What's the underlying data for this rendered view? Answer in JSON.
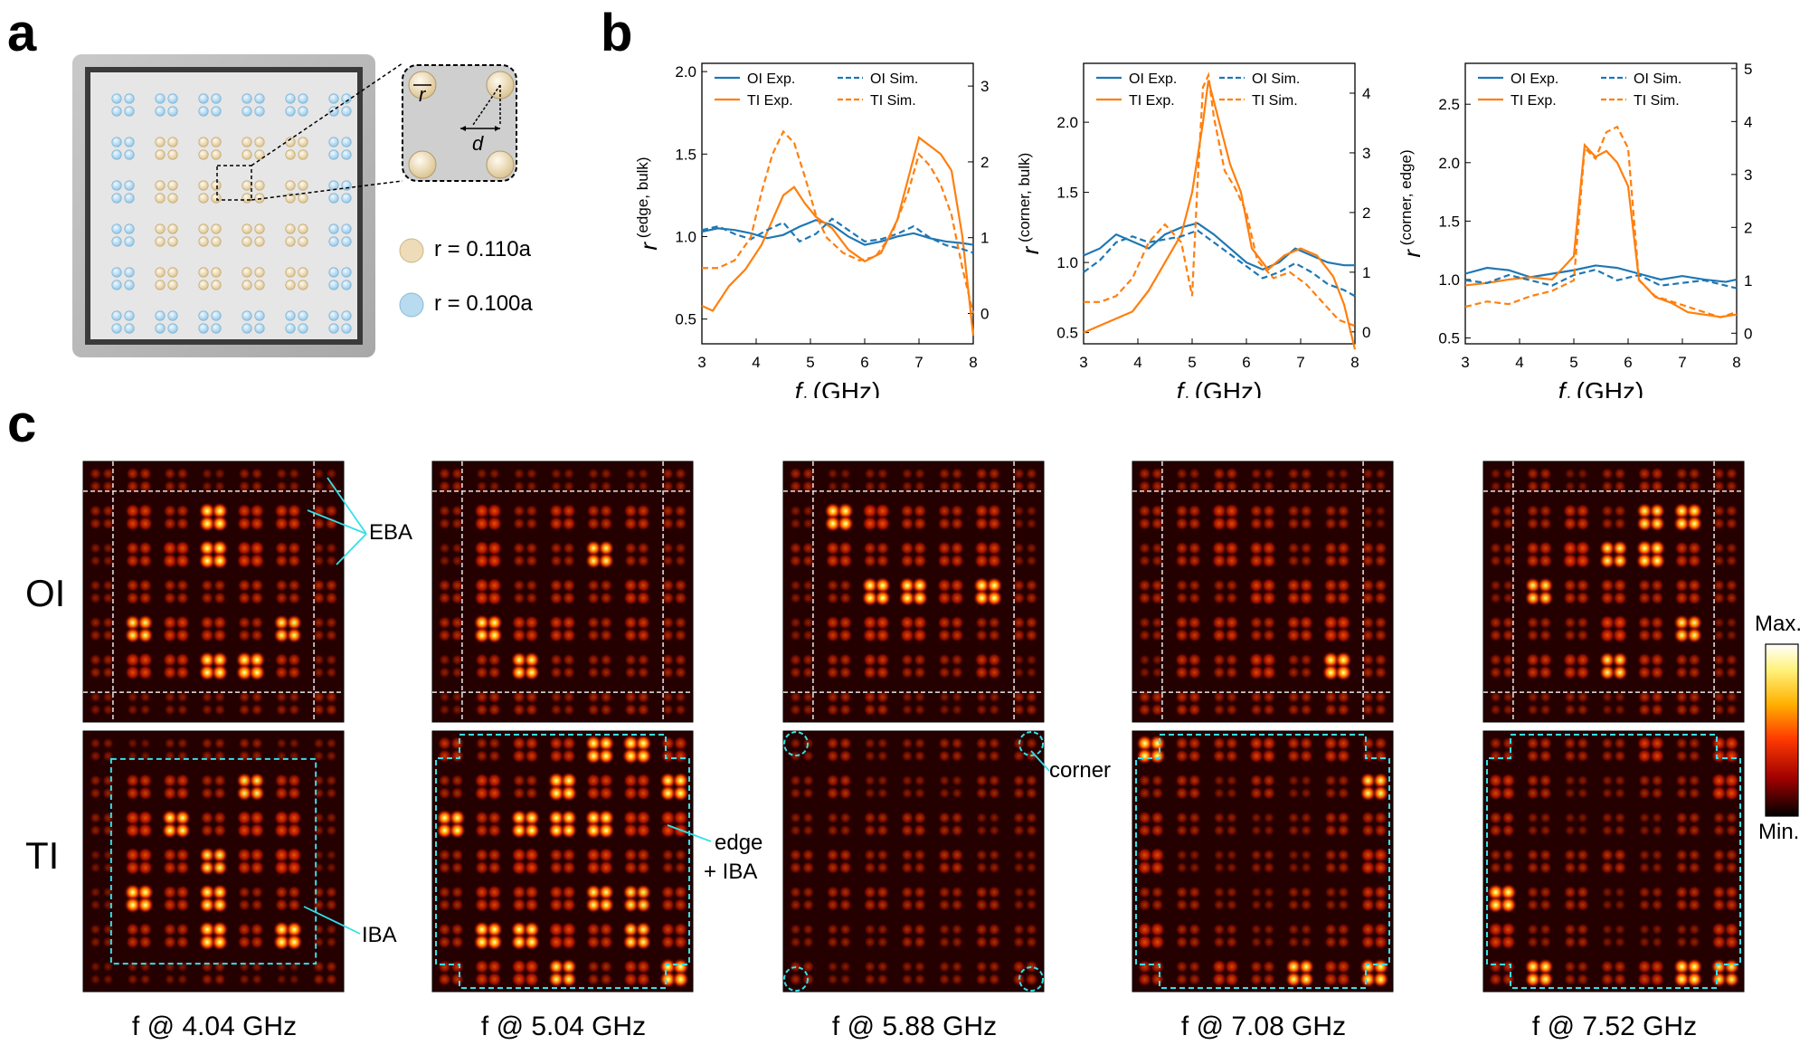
{
  "figure": {
    "panel_labels": [
      "a",
      "b",
      "c"
    ],
    "panel_a": {
      "legend": [
        {
          "label": "r = 0.110a",
          "color": "#eddcb7"
        },
        {
          "label": "r = 0.100a",
          "color": "#b8dbef"
        }
      ],
      "inset_labels": {
        "r": "r",
        "d": "d"
      }
    },
    "panel_c": {
      "row_labels": [
        "OI",
        "TI"
      ],
      "frequencies": [
        "f @ 4.04 GHz",
        "f @ 5.04 GHz",
        "f @ 5.88 GHz",
        "f @ 7.08 GHz",
        "f @ 7.52 GHz"
      ],
      "annotations": {
        "eba": "EBA",
        "iba": "IBA",
        "edge": "edge",
        "edge_iba": "+ IBA",
        "corner": "corner"
      },
      "colorbar": {
        "max": "Max.",
        "min": "Min."
      }
    }
  },
  "chart_data": [
    {
      "type": "line",
      "ylabel": "r (edge, bulk)",
      "xlabel": "fi (GHz)",
      "xlim": [
        3,
        8
      ],
      "ylim_left": [
        0.35,
        2.05
      ],
      "ylim_right": [
        -0.4,
        3.3
      ],
      "xticks": [
        3,
        4,
        5,
        6,
        7,
        8
      ],
      "yticks_left": [
        0.5,
        1.0,
        1.5,
        2.0
      ],
      "yticks_right": [
        0,
        1,
        2,
        3
      ],
      "legend": [
        "OI Exp.",
        "TI Exp.",
        "OI Sim.",
        "TI Sim."
      ],
      "series": [
        {
          "name": "OI Exp.",
          "axis": "left",
          "color": "#1f77b4",
          "dash": false,
          "x": [
            3,
            3.3,
            3.6,
            3.9,
            4.2,
            4.5,
            4.8,
            5.1,
            5.4,
            5.7,
            6,
            6.3,
            6.6,
            6.9,
            7.2,
            7.5,
            7.8,
            8
          ],
          "y": [
            1.03,
            1.05,
            1.04,
            1.02,
            0.99,
            1.01,
            1.06,
            1.1,
            1.07,
            1.0,
            0.95,
            0.97,
            1.0,
            1.02,
            0.99,
            0.97,
            0.96,
            0.95
          ]
        },
        {
          "name": "TI Exp.",
          "axis": "left",
          "color": "#ff7f0e",
          "dash": false,
          "x": [
            3,
            3.2,
            3.5,
            3.8,
            4.1,
            4.3,
            4.5,
            4.7,
            4.9,
            5.1,
            5.4,
            5.7,
            6,
            6.3,
            6.6,
            6.8,
            7,
            7.2,
            7.4,
            7.6,
            7.8,
            8
          ],
          "y": [
            0.58,
            0.55,
            0.7,
            0.8,
            0.95,
            1.1,
            1.25,
            1.3,
            1.2,
            1.12,
            1.05,
            0.92,
            0.85,
            0.9,
            1.1,
            1.35,
            1.6,
            1.55,
            1.5,
            1.4,
            1.0,
            0.4
          ]
        },
        {
          "name": "OI Sim.",
          "axis": "right",
          "color": "#1f77b4",
          "dash": true,
          "x": [
            3,
            3.3,
            3.6,
            3.9,
            4.2,
            4.5,
            4.8,
            5.1,
            5.4,
            5.7,
            6,
            6.3,
            6.6,
            6.9,
            7.2,
            7.5,
            7.8,
            8
          ],
          "y": [
            1.1,
            1.15,
            1.05,
            0.98,
            1.1,
            1.2,
            0.95,
            1.05,
            1.25,
            1.1,
            0.95,
            0.98,
            1.05,
            1.15,
            1.0,
            0.9,
            0.85,
            0.8
          ]
        },
        {
          "name": "TI Sim.",
          "axis": "right",
          "color": "#ff7f0e",
          "dash": true,
          "x": [
            3,
            3.3,
            3.6,
            3.9,
            4.1,
            4.3,
            4.5,
            4.7,
            4.9,
            5.1,
            5.3,
            5.6,
            5.9,
            6.2,
            6.5,
            6.8,
            7,
            7.2,
            7.4,
            7.6,
            7.8,
            8
          ],
          "y": [
            0.6,
            0.6,
            0.7,
            1.0,
            1.6,
            2.1,
            2.4,
            2.25,
            1.8,
            1.3,
            1.0,
            0.8,
            0.7,
            0.75,
            1.05,
            1.6,
            2.1,
            1.95,
            1.7,
            1.3,
            0.6,
            0.0
          ]
        }
      ]
    },
    {
      "type": "line",
      "ylabel": "r (corner, bulk)",
      "xlabel": "fi (GHz)",
      "xlim": [
        3,
        8
      ],
      "ylim_left": [
        0.42,
        2.42
      ],
      "ylim_right": [
        -0.2,
        4.5
      ],
      "xticks": [
        3,
        4,
        5,
        6,
        7,
        8
      ],
      "yticks_left": [
        0.5,
        1.0,
        1.5,
        2.0
      ],
      "yticks_right": [
        0,
        1,
        2,
        3,
        4
      ],
      "legend": [
        "OI Exp.",
        "TI Exp.",
        "OI Sim.",
        "TI Sim."
      ],
      "series": [
        {
          "name": "OI Exp.",
          "axis": "left",
          "color": "#1f77b4",
          "dash": false,
          "x": [
            3,
            3.3,
            3.6,
            3.9,
            4.2,
            4.5,
            4.8,
            5.1,
            5.4,
            5.7,
            6,
            6.3,
            6.6,
            6.9,
            7.2,
            7.5,
            7.8,
            8
          ],
          "y": [
            1.05,
            1.1,
            1.2,
            1.15,
            1.1,
            1.2,
            1.25,
            1.28,
            1.2,
            1.1,
            1.0,
            0.95,
            1.0,
            1.1,
            1.05,
            1.0,
            0.98,
            0.98
          ]
        },
        {
          "name": "TI Exp.",
          "axis": "left",
          "color": "#ff7f0e",
          "dash": false,
          "x": [
            3,
            3.3,
            3.6,
            3.9,
            4.2,
            4.5,
            4.8,
            5,
            5.2,
            5.3,
            5.5,
            5.7,
            5.9,
            6.1,
            6.4,
            6.7,
            7,
            7.3,
            7.6,
            7.8,
            8
          ],
          "y": [
            0.5,
            0.55,
            0.6,
            0.65,
            0.8,
            1.0,
            1.2,
            1.5,
            2.0,
            2.3,
            2.0,
            1.7,
            1.5,
            1.1,
            0.95,
            1.05,
            1.1,
            1.05,
            0.9,
            0.7,
            0.38
          ]
        },
        {
          "name": "OI Sim.",
          "axis": "right",
          "color": "#1f77b4",
          "dash": true,
          "x": [
            3,
            3.3,
            3.6,
            3.9,
            4.2,
            4.5,
            4.8,
            5.1,
            5.4,
            5.7,
            6,
            6.3,
            6.6,
            6.9,
            7.2,
            7.5,
            7.8,
            8
          ],
          "y": [
            1.0,
            1.2,
            1.5,
            1.6,
            1.5,
            1.55,
            1.6,
            1.7,
            1.5,
            1.3,
            1.1,
            0.9,
            1.0,
            1.15,
            1.0,
            0.8,
            0.7,
            0.6
          ]
        },
        {
          "name": "TI Sim.",
          "axis": "right",
          "color": "#ff7f0e",
          "dash": true,
          "x": [
            3,
            3.3,
            3.6,
            3.9,
            4.2,
            4.5,
            4.8,
            5,
            5.1,
            5.2,
            5.3,
            5.4,
            5.6,
            5.8,
            6,
            6.2,
            6.5,
            6.8,
            7.1,
            7.4,
            7.7,
            8
          ],
          "y": [
            0.5,
            0.5,
            0.6,
            0.9,
            1.5,
            1.8,
            1.5,
            0.6,
            2.5,
            4.1,
            4.3,
            3.6,
            2.7,
            2.4,
            2.0,
            1.2,
            0.9,
            1.0,
            0.8,
            0.5,
            0.2,
            0.1
          ]
        }
      ]
    },
    {
      "type": "line",
      "ylabel": "r (corner, edge)",
      "xlabel": "fi (GHz)",
      "xlim": [
        3,
        8
      ],
      "ylim_left": [
        0.45,
        2.85
      ],
      "ylim_right": [
        -0.2,
        5.1
      ],
      "xticks": [
        3,
        4,
        5,
        6,
        7,
        8
      ],
      "yticks_left": [
        0.5,
        1.0,
        1.5,
        2.0,
        2.5
      ],
      "yticks_right": [
        0,
        1,
        2,
        3,
        4,
        5
      ],
      "legend": [
        "OI Exp.",
        "TI Exp.",
        "OI Sim.",
        "TI Sim."
      ],
      "series": [
        {
          "name": "OI Exp.",
          "axis": "left",
          "color": "#1f77b4",
          "dash": false,
          "x": [
            3,
            3.4,
            3.8,
            4.2,
            4.6,
            5,
            5.4,
            5.8,
            6.2,
            6.6,
            7,
            7.4,
            7.8,
            8
          ],
          "y": [
            1.05,
            1.1,
            1.08,
            1.02,
            1.05,
            1.08,
            1.12,
            1.1,
            1.05,
            1.0,
            1.03,
            1.0,
            0.98,
            1.0
          ]
        },
        {
          "name": "TI Exp.",
          "axis": "left",
          "color": "#ff7f0e",
          "dash": false,
          "x": [
            3,
            3.4,
            3.8,
            4.2,
            4.6,
            5,
            5.2,
            5.4,
            5.6,
            5.8,
            6,
            6.2,
            6.5,
            6.8,
            7.1,
            7.4,
            7.7,
            8
          ],
          "y": [
            0.95,
            0.97,
            1.0,
            1.02,
            1.0,
            1.2,
            2.15,
            2.05,
            2.1,
            2.0,
            1.8,
            1.0,
            0.85,
            0.8,
            0.72,
            0.7,
            0.68,
            0.7
          ]
        },
        {
          "name": "OI Sim.",
          "axis": "right",
          "color": "#1f77b4",
          "dash": true,
          "x": [
            3,
            3.4,
            3.8,
            4.2,
            4.6,
            5,
            5.4,
            5.8,
            6.2,
            6.6,
            7,
            7.4,
            7.8,
            8
          ],
          "y": [
            1.0,
            0.95,
            1.1,
            1.0,
            0.9,
            1.1,
            1.2,
            1.0,
            1.1,
            0.9,
            0.95,
            1.0,
            0.9,
            0.85
          ]
        },
        {
          "name": "TI Sim.",
          "axis": "right",
          "color": "#ff7f0e",
          "dash": true,
          "x": [
            3,
            3.4,
            3.8,
            4.2,
            4.6,
            5,
            5.2,
            5.4,
            5.6,
            5.8,
            6,
            6.2,
            6.5,
            6.8,
            7.1,
            7.4,
            7.7,
            8
          ],
          "y": [
            0.5,
            0.6,
            0.55,
            0.7,
            0.8,
            1.0,
            3.5,
            3.3,
            3.8,
            3.9,
            3.5,
            1.0,
            0.7,
            0.6,
            0.5,
            0.4,
            0.3,
            0.4
          ]
        }
      ]
    }
  ]
}
